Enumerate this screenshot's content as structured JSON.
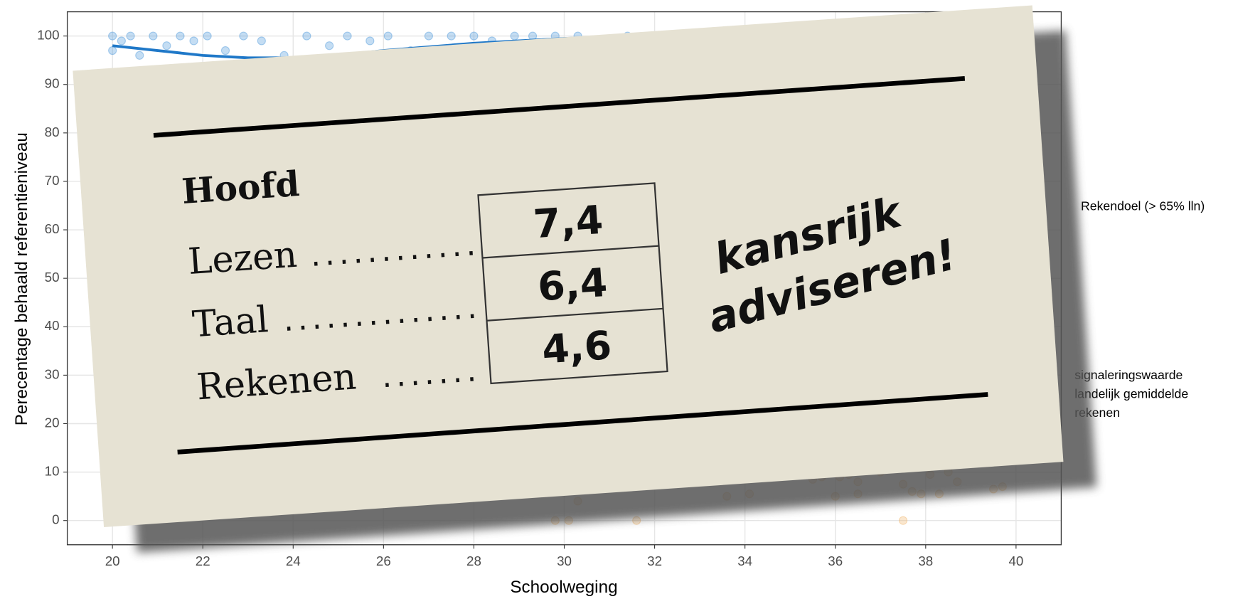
{
  "chart_data": {
    "type": "scatter",
    "x_label": "Schoolweging",
    "y_label": "Perecentage behaald referentieniveau",
    "xlim": [
      19,
      41
    ],
    "xticks": [
      20,
      22,
      24,
      26,
      28,
      30,
      32,
      34,
      36,
      38,
      40
    ],
    "ylim": [
      -5,
      105
    ],
    "yticks": [
      0,
      10,
      20,
      30,
      40,
      50,
      60,
      70,
      80,
      90,
      100
    ],
    "grid": true,
    "series": [
      {
        "type": "scatter",
        "color": "#3b8fd8",
        "x": [
          20,
          20,
          20.2,
          20.4,
          20.6,
          20.9,
          21.2,
          21.5,
          21.8,
          22.1,
          22.5,
          22.9,
          23.3,
          23.8,
          24.3,
          24.8,
          25.2,
          25.7,
          26.1,
          26.6,
          27.0,
          27.5,
          28.0,
          28.4,
          28.9,
          29.3,
          29.8,
          30.3,
          30.8,
          31.4
        ],
        "values": [
          100,
          97,
          99,
          100,
          96,
          100,
          98,
          100,
          99,
          100,
          97,
          100,
          99,
          96,
          100,
          98,
          100,
          99,
          100,
          97,
          100,
          100,
          100,
          99,
          100,
          100,
          100,
          100,
          99,
          100
        ]
      },
      {
        "type": "line",
        "color": "#1f78c8",
        "x": [
          20,
          21,
          22,
          23,
          24,
          25,
          26,
          28,
          30,
          32
        ],
        "values": [
          98,
          97,
          96,
          95.5,
          95.5,
          96,
          97,
          98.5,
          99.5,
          100
        ]
      },
      {
        "type": "scatter",
        "color": "#f0b060",
        "x": [
          29.8,
          30.1,
          30.3,
          31.6,
          33.6,
          34.1,
          35.5,
          35.7,
          36.0,
          36.1,
          36.3,
          36.5,
          36.5,
          37.0,
          37.5,
          37.5,
          37.7,
          37.9,
          38.1,
          38.3,
          38.5,
          38.7,
          39.5,
          39.7
        ],
        "values": [
          0,
          0,
          4,
          0,
          5,
          5.5,
          8.5,
          9,
          5,
          9,
          9.5,
          8,
          5.5,
          10,
          7.5,
          0,
          6,
          5.5,
          9.5,
          5.5,
          10,
          8,
          6.5,
          7
        ]
      }
    ],
    "annotations": [
      {
        "lines": [
          "Rekendoel (> 65% lln)"
        ]
      },
      {
        "lines": [
          "signaleringswaarde",
          "landelijk gemiddelde",
          "rekenen"
        ]
      }
    ]
  },
  "card": {
    "title": "Hoofd",
    "rows": [
      {
        "label": "Lezen",
        "value": "7,4"
      },
      {
        "label": "Taal",
        "value": "6,4"
      },
      {
        "label": "Rekenen",
        "value": "4,6"
      }
    ],
    "note": [
      "kansrijk",
      "adviseren!"
    ]
  }
}
